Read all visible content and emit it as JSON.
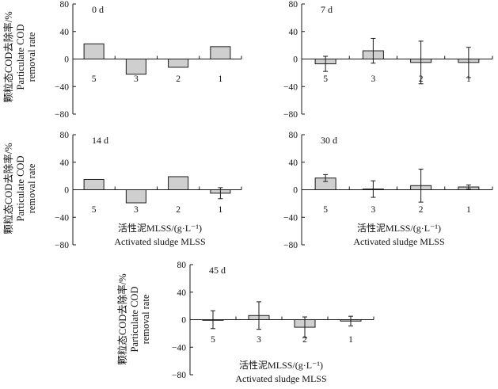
{
  "figure": {
    "ylabel_zh": "颗粒态COD去除率/%",
    "ylabel_en_line1": "Particulate COD",
    "ylabel_en_line2": "removal rate",
    "xlabel_zh": "活性泥MLSS/(g·L⁻¹)",
    "xlabel_en": "Activated sludge MLSS"
  },
  "colors": {
    "bar_fill": "#cfcfcf",
    "bar_stroke": "#1a1a1a",
    "axis": "#1a1a1a"
  },
  "chart_data": [
    {
      "type": "bar",
      "title": "0 d",
      "categories": [
        "5",
        "3",
        "2",
        "1"
      ],
      "values": [
        22,
        -22,
        -12,
        18
      ],
      "errors": [
        null,
        null,
        null,
        null
      ],
      "ylim": [
        -80,
        80
      ],
      "yticks": [
        80,
        40,
        0,
        -40,
        -80
      ],
      "has_xlabel": false
    },
    {
      "type": "bar",
      "title": "7 d",
      "categories": [
        "5",
        "3",
        "2",
        "1"
      ],
      "values": [
        -7,
        12,
        -5,
        -5
      ],
      "errors": [
        11,
        18,
        31,
        22
      ],
      "ylim": [
        -80,
        80
      ],
      "yticks": [
        80,
        40,
        0,
        -40,
        -80
      ],
      "has_xlabel": false
    },
    {
      "type": "bar",
      "title": "14 d",
      "categories": [
        "5",
        "3",
        "2",
        "1"
      ],
      "values": [
        15,
        -19,
        19,
        -5
      ],
      "errors": [
        null,
        null,
        null,
        8
      ],
      "ylim": [
        -80,
        80
      ],
      "yticks": [
        80,
        40,
        0,
        -40,
        -80
      ],
      "has_xlabel": true
    },
    {
      "type": "bar",
      "title": "30 d",
      "categories": [
        "5",
        "3",
        "2",
        "1"
      ],
      "values": [
        17,
        1,
        6,
        4
      ],
      "errors": [
        5,
        12,
        24,
        3
      ],
      "ylim": [
        -80,
        80
      ],
      "yticks": [
        80,
        40,
        0,
        -40,
        -80
      ],
      "has_xlabel": true
    },
    {
      "type": "bar",
      "title": "45 d",
      "categories": [
        "5",
        "3",
        "2",
        "1"
      ],
      "values": [
        0,
        6,
        -11,
        -2
      ],
      "errors": [
        13,
        20,
        15,
        7
      ],
      "ylim": [
        -80,
        80
      ],
      "yticks": [
        80,
        40,
        0,
        -40,
        -80
      ],
      "has_xlabel": true
    }
  ]
}
